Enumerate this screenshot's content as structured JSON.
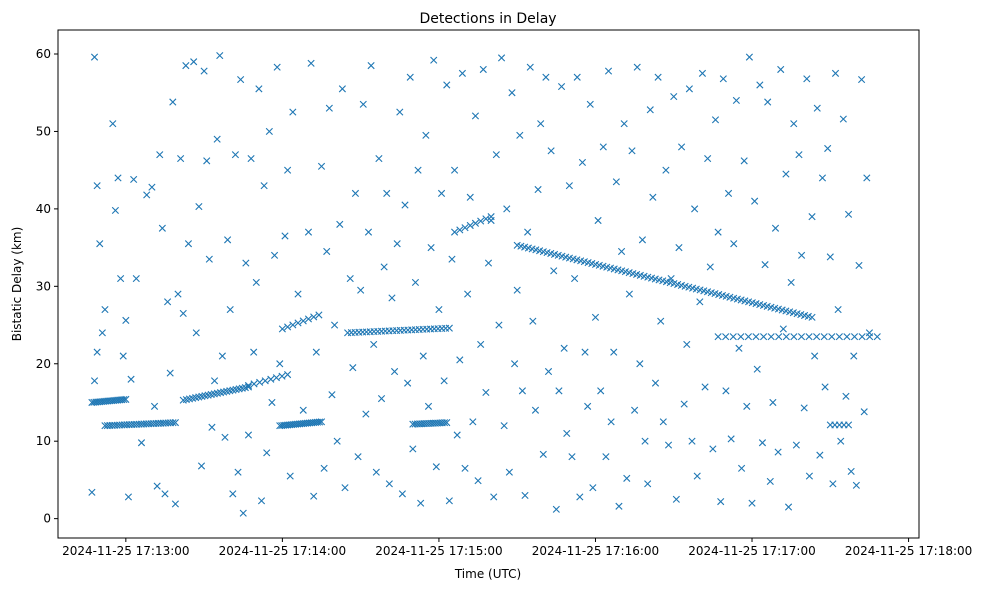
{
  "chart_data": {
    "type": "scatter",
    "title": "Detections in Delay",
    "xlabel": "Time (UTC)",
    "ylabel": "Bistatic Delay (km)",
    "x_units": "seconds after 2024-11-25 17:12:00 UTC",
    "xlim": [
      34,
      364
    ],
    "ylim": [
      -2.5,
      63.1
    ],
    "grid": false,
    "marker": "x",
    "color": "#1f77b4",
    "xticks": [
      {
        "value": 60,
        "label": "2024-11-25 17:13:00"
      },
      {
        "value": 120,
        "label": "2024-11-25 17:14:00"
      },
      {
        "value": 180,
        "label": "2024-11-25 17:15:00"
      },
      {
        "value": 240,
        "label": "2024-11-25 17:16:00"
      },
      {
        "value": 300,
        "label": "2024-11-25 17:17:00"
      },
      {
        "value": 360,
        "label": "2024-11-25 17:18:00"
      }
    ],
    "yticks": [
      0,
      10,
      20,
      30,
      40,
      50,
      60
    ],
    "tracks": [
      {
        "t": [
          47,
          60
        ],
        "d": [
          15.0,
          15.4
        ],
        "n": 18
      },
      {
        "t": [
          52,
          79
        ],
        "d": [
          12.0,
          12.4
        ],
        "n": 30
      },
      {
        "t": [
          82,
          107
        ],
        "d": [
          15.3,
          17.0
        ],
        "n": 22
      },
      {
        "t": [
          107,
          122
        ],
        "d": [
          17.2,
          18.6
        ],
        "n": 8
      },
      {
        "t": [
          119,
          135
        ],
        "d": [
          12.0,
          12.5
        ],
        "n": 22
      },
      {
        "t": [
          120,
          134
        ],
        "d": [
          24.5,
          26.3
        ],
        "n": 8
      },
      {
        "t": [
          145,
          184
        ],
        "d": [
          24.0,
          24.6
        ],
        "n": 28
      },
      {
        "t": [
          170,
          183
        ],
        "d": [
          12.2,
          12.4
        ],
        "n": 16
      },
      {
        "t": [
          186,
          200
        ],
        "d": [
          37.0,
          39.0
        ],
        "n": 8
      },
      {
        "t": [
          210,
          323
        ],
        "d": [
          35.3,
          26.0
        ],
        "n": 80
      },
      {
        "t": [
          287,
          348
        ],
        "d": [
          23.5,
          23.5
        ],
        "n": 22
      },
      {
        "t": [
          330,
          337
        ],
        "d": [
          12.1,
          12.1
        ],
        "n": 5
      }
    ],
    "points": [
      [
        47,
        3.4
      ],
      [
        48,
        59.6
      ],
      [
        49,
        43
      ],
      [
        50,
        35.5
      ],
      [
        51,
        24
      ],
      [
        49,
        21.5
      ],
      [
        48,
        17.8
      ],
      [
        52,
        27
      ],
      [
        55,
        51
      ],
      [
        56,
        39.8
      ],
      [
        57,
        44
      ],
      [
        58,
        31
      ],
      [
        59,
        21
      ],
      [
        60,
        25.6
      ],
      [
        61,
        2.8
      ],
      [
        62,
        18
      ],
      [
        63,
        43.8
      ],
      [
        64,
        31
      ],
      [
        66,
        9.8
      ],
      [
        68,
        41.8
      ],
      [
        70,
        42.8
      ],
      [
        71,
        14.5
      ],
      [
        72,
        4.2
      ],
      [
        73,
        47
      ],
      [
        74,
        37.5
      ],
      [
        75,
        3.2
      ],
      [
        76,
        28
      ],
      [
        77,
        18.8
      ],
      [
        78,
        53.8
      ],
      [
        79,
        1.9
      ],
      [
        80,
        29
      ],
      [
        81,
        46.5
      ],
      [
        82,
        26.5
      ],
      [
        83,
        58.5
      ],
      [
        84,
        35.5
      ],
      [
        86,
        59
      ],
      [
        87,
        24
      ],
      [
        88,
        40.3
      ],
      [
        89,
        6.8
      ],
      [
        90,
        57.8
      ],
      [
        91,
        46.2
      ],
      [
        92,
        33.5
      ],
      [
        93,
        11.8
      ],
      [
        94,
        17.8
      ],
      [
        95,
        49
      ],
      [
        96,
        59.8
      ],
      [
        97,
        21
      ],
      [
        98,
        10.5
      ],
      [
        99,
        36
      ],
      [
        100,
        27
      ],
      [
        101,
        3.2
      ],
      [
        102,
        47
      ],
      [
        103,
        6
      ],
      [
        104,
        56.7
      ],
      [
        105,
        0.7
      ],
      [
        106,
        33
      ],
      [
        107,
        10.8
      ],
      [
        108,
        46.5
      ],
      [
        109,
        21.5
      ],
      [
        110,
        30.5
      ],
      [
        111,
        55.5
      ],
      [
        112,
        2.3
      ],
      [
        113,
        43
      ],
      [
        114,
        8.5
      ],
      [
        115,
        50
      ],
      [
        116,
        15
      ],
      [
        117,
        34
      ],
      [
        118,
        58.3
      ],
      [
        119,
        20
      ],
      [
        121,
        36.5
      ],
      [
        122,
        45
      ],
      [
        123,
        5.5
      ],
      [
        124,
        52.5
      ],
      [
        126,
        29
      ],
      [
        128,
        14
      ],
      [
        130,
        37
      ],
      [
        131,
        58.8
      ],
      [
        132,
        2.9
      ],
      [
        133,
        21.5
      ],
      [
        135,
        45.5
      ],
      [
        136,
        6.5
      ],
      [
        137,
        34.5
      ],
      [
        138,
        53
      ],
      [
        139,
        16
      ],
      [
        140,
        25
      ],
      [
        141,
        10
      ],
      [
        142,
        38
      ],
      [
        143,
        55.5
      ],
      [
        144,
        4
      ],
      [
        146,
        31
      ],
      [
        147,
        19.5
      ],
      [
        148,
        42
      ],
      [
        149,
        8
      ],
      [
        150,
        29.5
      ],
      [
        151,
        53.5
      ],
      [
        152,
        13.5
      ],
      [
        153,
        37
      ],
      [
        154,
        58.5
      ],
      [
        155,
        22.5
      ],
      [
        156,
        6
      ],
      [
        157,
        46.5
      ],
      [
        158,
        15.5
      ],
      [
        159,
        32.5
      ],
      [
        160,
        42
      ],
      [
        161,
        4.5
      ],
      [
        162,
        28.5
      ],
      [
        163,
        19
      ],
      [
        164,
        35.5
      ],
      [
        165,
        52.5
      ],
      [
        166,
        3.2
      ],
      [
        167,
        40.5
      ],
      [
        168,
        17.5
      ],
      [
        169,
        57
      ],
      [
        170,
        9
      ],
      [
        171,
        30.5
      ],
      [
        172,
        45
      ],
      [
        173,
        2
      ],
      [
        174,
        21
      ],
      [
        175,
        49.5
      ],
      [
        176,
        14.5
      ],
      [
        177,
        35
      ],
      [
        178,
        59.2
      ],
      [
        179,
        6.7
      ],
      [
        180,
        27
      ],
      [
        181,
        42
      ],
      [
        182,
        17.8
      ],
      [
        183,
        56
      ],
      [
        184,
        2.3
      ],
      [
        185,
        33.5
      ],
      [
        186,
        45
      ],
      [
        187,
        10.8
      ],
      [
        188,
        20.5
      ],
      [
        189,
        57.5
      ],
      [
        190,
        6.5
      ],
      [
        191,
        29
      ],
      [
        192,
        41.5
      ],
      [
        193,
        12.5
      ],
      [
        194,
        52
      ],
      [
        195,
        4.9
      ],
      [
        196,
        22.5
      ],
      [
        197,
        58
      ],
      [
        198,
        16.3
      ],
      [
        199,
        33
      ],
      [
        200,
        38.5
      ],
      [
        201,
        2.8
      ],
      [
        202,
        47
      ],
      [
        203,
        25
      ],
      [
        204,
        59.5
      ],
      [
        205,
        12
      ],
      [
        206,
        40
      ],
      [
        207,
        6
      ],
      [
        208,
        55
      ],
      [
        209,
        20
      ],
      [
        210,
        29.5
      ],
      [
        211,
        49.5
      ],
      [
        212,
        16.5
      ],
      [
        213,
        3
      ],
      [
        214,
        37
      ],
      [
        215,
        58.3
      ],
      [
        216,
        25.5
      ],
      [
        217,
        14
      ],
      [
        218,
        42.5
      ],
      [
        219,
        51
      ],
      [
        220,
        8.3
      ],
      [
        221,
        57
      ],
      [
        222,
        19
      ],
      [
        223,
        47.5
      ],
      [
        224,
        32
      ],
      [
        225,
        1.2
      ],
      [
        226,
        16.5
      ],
      [
        227,
        55.8
      ],
      [
        228,
        22
      ],
      [
        229,
        11
      ],
      [
        230,
        43
      ],
      [
        231,
        8
      ],
      [
        232,
        31
      ],
      [
        233,
        57
      ],
      [
        234,
        2.8
      ],
      [
        235,
        46
      ],
      [
        236,
        21.5
      ],
      [
        237,
        14.5
      ],
      [
        238,
        53.5
      ],
      [
        239,
        4
      ],
      [
        240,
        26
      ],
      [
        241,
        38.5
      ],
      [
        242,
        16.5
      ],
      [
        243,
        48
      ],
      [
        244,
        8
      ],
      [
        245,
        57.8
      ],
      [
        246,
        12.5
      ],
      [
        247,
        21.5
      ],
      [
        248,
        43.5
      ],
      [
        249,
        1.6
      ],
      [
        250,
        34.5
      ],
      [
        251,
        51
      ],
      [
        252,
        5.2
      ],
      [
        253,
        29
      ],
      [
        254,
        47.5
      ],
      [
        255,
        14
      ],
      [
        256,
        58.3
      ],
      [
        257,
        20
      ],
      [
        258,
        36
      ],
      [
        259,
        10
      ],
      [
        260,
        4.5
      ],
      [
        261,
        52.8
      ],
      [
        262,
        41.5
      ],
      [
        263,
        17.5
      ],
      [
        264,
        57
      ],
      [
        265,
        25.5
      ],
      [
        266,
        12.5
      ],
      [
        267,
        45
      ],
      [
        268,
        9.5
      ],
      [
        269,
        31
      ],
      [
        270,
        54.5
      ],
      [
        271,
        2.5
      ],
      [
        272,
        35
      ],
      [
        273,
        48
      ],
      [
        274,
        14.8
      ],
      [
        275,
        22.5
      ],
      [
        276,
        55.5
      ],
      [
        277,
        10
      ],
      [
        278,
        40
      ],
      [
        279,
        5.5
      ],
      [
        280,
        28
      ],
      [
        281,
        57.5
      ],
      [
        282,
        17
      ],
      [
        283,
        46.5
      ],
      [
        284,
        32.5
      ],
      [
        285,
        9
      ],
      [
        286,
        51.5
      ],
      [
        287,
        37
      ],
      [
        288,
        2.2
      ],
      [
        289,
        56.8
      ],
      [
        290,
        16.5
      ],
      [
        291,
        42
      ],
      [
        292,
        10.3
      ],
      [
        293,
        35.5
      ],
      [
        294,
        54
      ],
      [
        295,
        22
      ],
      [
        296,
        6.5
      ],
      [
        297,
        46.2
      ],
      [
        298,
        14.5
      ],
      [
        299,
        59.6
      ],
      [
        300,
        2
      ],
      [
        301,
        41
      ],
      [
        302,
        19.3
      ],
      [
        303,
        56
      ],
      [
        304,
        9.8
      ],
      [
        305,
        32.8
      ],
      [
        306,
        53.8
      ],
      [
        307,
        4.8
      ],
      [
        308,
        15
      ],
      [
        309,
        37.5
      ],
      [
        310,
        8.6
      ],
      [
        311,
        58
      ],
      [
        312,
        24.5
      ],
      [
        313,
        44.5
      ],
      [
        314,
        1.5
      ],
      [
        315,
        30.5
      ],
      [
        316,
        51
      ],
      [
        317,
        9.5
      ],
      [
        318,
        47
      ],
      [
        319,
        34
      ],
      [
        320,
        14.3
      ],
      [
        321,
        56.8
      ],
      [
        322,
        5.5
      ],
      [
        323,
        39
      ],
      [
        324,
        21
      ],
      [
        325,
        53
      ],
      [
        326,
        8.2
      ],
      [
        327,
        44
      ],
      [
        328,
        17
      ],
      [
        329,
        47.8
      ],
      [
        330,
        33.8
      ],
      [
        331,
        4.5
      ],
      [
        332,
        57.5
      ],
      [
        333,
        27
      ],
      [
        334,
        10
      ],
      [
        335,
        51.6
      ],
      [
        336,
        15.8
      ],
      [
        337,
        39.3
      ],
      [
        338,
        6.1
      ],
      [
        339,
        21
      ],
      [
        340,
        4.3
      ],
      [
        341,
        32.7
      ],
      [
        342,
        56.7
      ],
      [
        343,
        13.8
      ],
      [
        344,
        44
      ],
      [
        345,
        24
      ]
    ]
  }
}
